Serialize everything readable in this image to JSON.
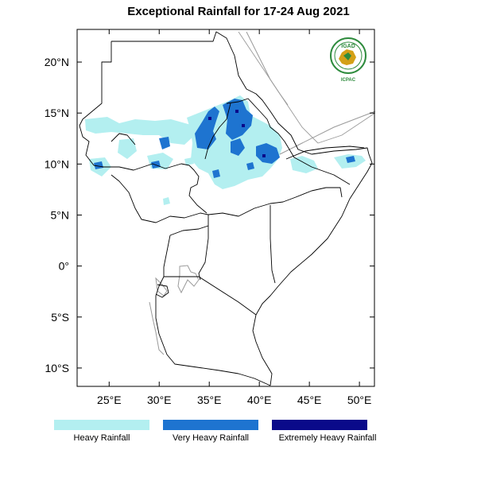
{
  "title": "Exceptional Rainfall for 17-24 Aug 2021",
  "logo": {
    "top_text": "IGAD",
    "bottom_text": "ICPAC",
    "colors": {
      "green": "#2e8b3d",
      "gold": "#d4a017",
      "blue": "#1f5fa8"
    }
  },
  "axes": {
    "lon_ticks": [
      {
        "value": 25,
        "label": "25°E"
      },
      {
        "value": 30,
        "label": "30°E"
      },
      {
        "value": 35,
        "label": "35°E"
      },
      {
        "value": 40,
        "label": "40°E"
      },
      {
        "value": 45,
        "label": "45°E"
      },
      {
        "value": 50,
        "label": "50°E"
      }
    ],
    "lat_ticks": [
      {
        "value": 20,
        "label": "20°N"
      },
      {
        "value": 15,
        "label": "15°N"
      },
      {
        "value": 10,
        "label": "10°N"
      },
      {
        "value": 5,
        "label": "5°N"
      },
      {
        "value": 0,
        "label": "0°"
      },
      {
        "value": -5,
        "label": "5°S"
      },
      {
        "value": -10,
        "label": "10°S"
      }
    ],
    "lon_range": [
      21.8,
      51.5
    ],
    "lat_range": [
      -11.8,
      23.2
    ]
  },
  "legend": [
    {
      "label": "Heavy Rainfall",
      "color": "#b3eff0"
    },
    {
      "label": "Very Heavy Rainfall",
      "color": "#1e74d0"
    },
    {
      "label": "Extremely Heavy Rainfall",
      "color": "#0a0a8a"
    }
  ],
  "colors": {
    "border": "#000000",
    "river": "#9a9a9a",
    "frame": "#000000"
  }
}
